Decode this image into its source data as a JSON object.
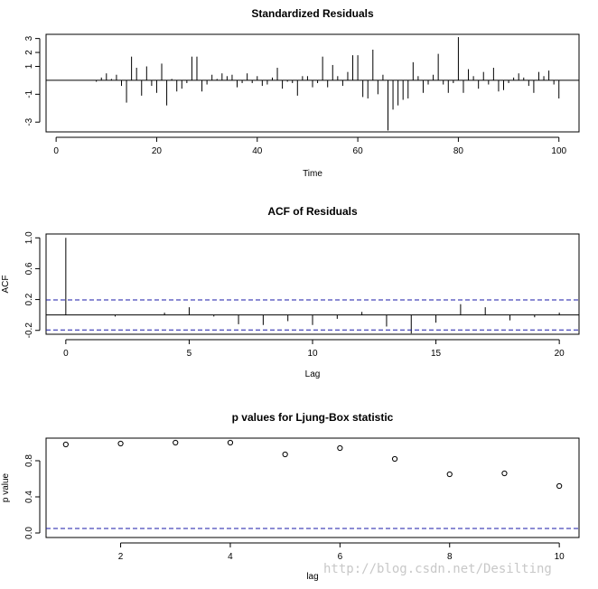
{
  "watermark": "http://blog.csdn.net/Desilting",
  "chart_data": [
    {
      "type": "bar",
      "title": "Standardized Residuals",
      "xlabel": "Time",
      "ylabel": "",
      "xlim": [
        -2,
        104
      ],
      "ylim": [
        -3.7,
        3.3
      ],
      "x_ticks": [
        0,
        20,
        40,
        60,
        80,
        100
      ],
      "y_ticks": [
        -3,
        -1,
        1,
        2,
        3
      ],
      "x": [
        8,
        9,
        10,
        11,
        12,
        13,
        14,
        15,
        16,
        17,
        18,
        19,
        20,
        21,
        22,
        23,
        24,
        25,
        26,
        27,
        28,
        29,
        30,
        31,
        32,
        33,
        34,
        35,
        36,
        37,
        38,
        39,
        40,
        41,
        42,
        43,
        44,
        45,
        46,
        47,
        48,
        49,
        50,
        51,
        52,
        53,
        54,
        55,
        56,
        57,
        58,
        59,
        60,
        61,
        62,
        63,
        64,
        65,
        66,
        67,
        68,
        69,
        70,
        71,
        72,
        73,
        74,
        75,
        76,
        77,
        78,
        79,
        80,
        81,
        82,
        83,
        84,
        85,
        86,
        87,
        88,
        89,
        90,
        91,
        92,
        93,
        94,
        95,
        96,
        97,
        98,
        99,
        100
      ],
      "values": [
        -0.1,
        0.2,
        0.5,
        0.1,
        0.4,
        -0.4,
        -1.6,
        1.7,
        0.9,
        -1.1,
        1.0,
        -0.4,
        -0.9,
        1.2,
        -1.8,
        0.1,
        -0.8,
        -0.6,
        -0.2,
        1.7,
        1.7,
        -0.8,
        -0.3,
        0.4,
        0.1,
        0.5,
        0.3,
        0.4,
        -0.5,
        -0.2,
        0.5,
        -0.2,
        0.3,
        -0.4,
        -0.3,
        0.2,
        0.9,
        -0.6,
        -0.1,
        -0.2,
        -1.1,
        0.3,
        0.3,
        -0.5,
        -0.2,
        1.7,
        -0.5,
        1.1,
        0.3,
        -0.4,
        0.6,
        1.8,
        1.8,
        -1.2,
        -1.3,
        2.2,
        -1.0,
        0.4,
        -3.6,
        -2.1,
        -1.8,
        -1.4,
        -1.3,
        1.3,
        0.3,
        -0.9,
        -0.3,
        0.4,
        1.9,
        -0.3,
        -0.9,
        -0.2,
        3.1,
        -0.9,
        0.8,
        0.3,
        -0.6,
        0.6,
        -0.3,
        0.9,
        -0.8,
        -0.7,
        -0.2,
        0.2,
        0.5,
        0.2,
        -0.4,
        -0.9,
        0.6,
        0.3,
        0.7,
        -0.3,
        -1.3
      ]
    },
    {
      "type": "bar",
      "title": "ACF of Residuals",
      "xlabel": "Lag",
      "ylabel": "ACF",
      "xlim": [
        -0.8,
        20.8
      ],
      "ylim": [
        -0.25,
        1.05
      ],
      "x_ticks": [
        0,
        5,
        10,
        15,
        20
      ],
      "y_ticks": [
        -0.2,
        0.2,
        0.6,
        1.0
      ],
      "tick_labels_y": [
        "-0.2",
        "0.2",
        "0.6",
        "1.0"
      ],
      "x": [
        0,
        1,
        2,
        3,
        4,
        5,
        6,
        7,
        8,
        9,
        10,
        11,
        12,
        13,
        14,
        15,
        16,
        17,
        18,
        19,
        20
      ],
      "values": [
        1.0,
        0.0,
        -0.02,
        0.0,
        0.03,
        0.1,
        -0.02,
        -0.12,
        -0.13,
        -0.08,
        -0.13,
        -0.05,
        0.04,
        -0.15,
        -0.24,
        -0.1,
        0.14,
        0.1,
        -0.07,
        -0.03,
        0.03
      ],
      "reference_lines": [
        0.195,
        -0.195
      ]
    },
    {
      "type": "scatter",
      "title": "p values for Ljung-Box statistic",
      "xlabel": "lag",
      "ylabel": "p value",
      "xlim": [
        0.64,
        10.36
      ],
      "ylim": [
        -0.05,
        1.05
      ],
      "x_ticks": [
        2,
        4,
        6,
        8,
        10
      ],
      "y_ticks": [
        0.0,
        0.4,
        0.8
      ],
      "tick_labels_y": [
        "0.0",
        "0.4",
        "0.8"
      ],
      "x": [
        1,
        2,
        3,
        4,
        5,
        6,
        7,
        8,
        9,
        10
      ],
      "values": [
        0.98,
        0.99,
        1.0,
        1.0,
        0.87,
        0.94,
        0.82,
        0.65,
        0.66,
        0.52
      ],
      "reference_lines": [
        0.05
      ]
    }
  ]
}
